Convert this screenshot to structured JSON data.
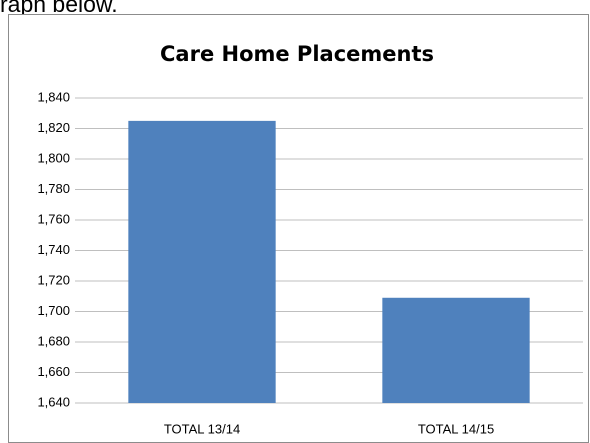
{
  "page_text": "raph below.",
  "chart_data": {
    "type": "bar",
    "title": "Care Home Placements",
    "categories": [
      "TOTAL 13/14",
      "TOTAL 14/15"
    ],
    "values": [
      1825,
      1709
    ],
    "color": "#4f81bd",
    "ylim": [
      1640,
      1840
    ],
    "yticks": [
      {
        "value": 1640,
        "label": "1,640"
      },
      {
        "value": 1660,
        "label": "1,660"
      },
      {
        "value": 1680,
        "label": "1,680"
      },
      {
        "value": 1700,
        "label": "1,700"
      },
      {
        "value": 1720,
        "label": "1,720"
      },
      {
        "value": 1740,
        "label": "1,740"
      },
      {
        "value": 1760,
        "label": "1,760"
      },
      {
        "value": 1780,
        "label": "1,780"
      },
      {
        "value": 1800,
        "label": "1,800"
      },
      {
        "value": 1820,
        "label": "1,820"
      },
      {
        "value": 1840,
        "label": "1,840"
      }
    ],
    "grid": true
  }
}
